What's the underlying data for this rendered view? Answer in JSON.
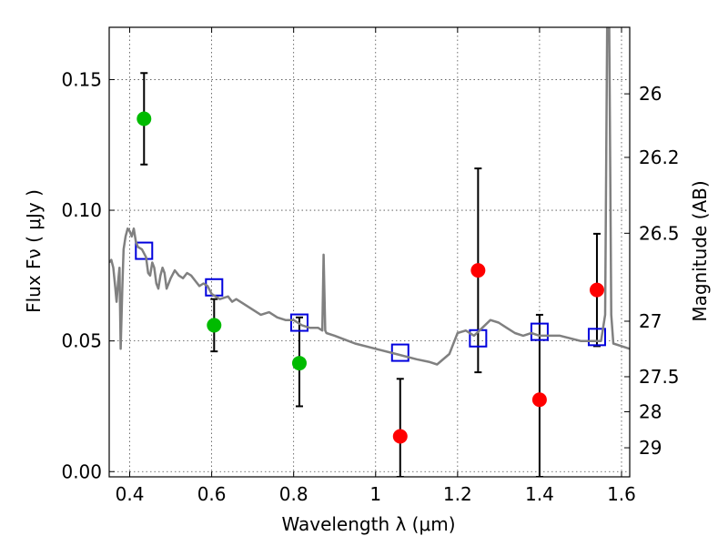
{
  "chart_data": {
    "type": "scatter",
    "xlabel": "Wavelength  λ (μm)",
    "ylabel": "Flux  Fν  ( μJy )",
    "ylabel_right": "Magnitude (AB)",
    "xlim": [
      0.35,
      1.62
    ],
    "ylim": [
      -0.002,
      0.17
    ],
    "grid": true,
    "x_ticks": [
      0.4,
      0.6,
      0.8,
      1.0,
      1.2,
      1.4,
      1.6
    ],
    "x_tick_labels": [
      "0.4",
      "0.6",
      "0.8",
      "1",
      "1.2",
      "1.4",
      "1.6"
    ],
    "y_ticks": [
      0.0,
      0.05,
      0.1,
      0.15
    ],
    "y_tick_labels": [
      "0.00",
      "0.05",
      "0.10",
      "0.15"
    ],
    "y_right_ticks": [
      26,
      26.2,
      26.5,
      27,
      27.5,
      28,
      29
    ],
    "y_right_tick_labels": [
      "26",
      "26.2",
      "26.5",
      "27",
      "27.5",
      "28",
      "29"
    ],
    "series": [
      {
        "color": "#00bb00",
        "marker": "circle",
        "x": [
          0.435,
          0.606,
          0.814
        ],
        "y": [
          0.135,
          0.056,
          0.0415
        ],
        "yerr_low": [
          0.1175,
          0.046,
          0.025
        ],
        "yerr_high": [
          0.1525,
          0.066,
          0.059
        ]
      },
      {
        "color": "#ff0000",
        "marker": "circle",
        "x": [
          1.06,
          1.25,
          1.4,
          1.54
        ],
        "y": [
          0.0135,
          0.077,
          0.0275,
          0.0695
        ],
        "yerr_low": [
          -0.002,
          0.038,
          -0.002,
          0.048
        ],
        "yerr_high": [
          0.0355,
          0.116,
          0.06,
          0.091
        ]
      },
      {
        "color": "#0000dd",
        "marker": "open-square",
        "x": [
          0.435,
          0.606,
          0.814,
          1.06,
          1.25,
          1.4,
          1.54
        ],
        "y": [
          0.0845,
          0.0705,
          0.057,
          0.0455,
          0.051,
          0.0535,
          0.0515
        ]
      },
      {
        "color": "#808080",
        "marker": "line",
        "x": [
          0.35,
          0.355,
          0.36,
          0.365,
          0.368,
          0.372,
          0.375,
          0.378,
          0.382,
          0.385,
          0.39,
          0.395,
          0.4,
          0.405,
          0.41,
          0.415,
          0.42,
          0.43,
          0.44,
          0.445,
          0.45,
          0.455,
          0.46,
          0.465,
          0.47,
          0.475,
          0.48,
          0.485,
          0.49,
          0.5,
          0.51,
          0.52,
          0.53,
          0.54,
          0.55,
          0.56,
          0.57,
          0.58,
          0.59,
          0.6,
          0.62,
          0.64,
          0.65,
          0.66,
          0.68,
          0.7,
          0.72,
          0.74,
          0.76,
          0.78,
          0.8,
          0.82,
          0.84,
          0.86,
          0.87,
          0.873,
          0.877,
          0.88,
          0.9,
          0.95,
          1.0,
          1.05,
          1.1,
          1.13,
          1.15,
          1.18,
          1.2,
          1.22,
          1.24,
          1.26,
          1.28,
          1.3,
          1.32,
          1.34,
          1.36,
          1.38,
          1.4,
          1.45,
          1.5,
          1.55,
          1.56,
          1.565,
          1.57,
          1.575,
          1.58,
          1.62
        ],
        "y": [
          0.08,
          0.081,
          0.078,
          0.07,
          0.065,
          0.073,
          0.078,
          0.047,
          0.07,
          0.085,
          0.09,
          0.093,
          0.092,
          0.09,
          0.093,
          0.088,
          0.086,
          0.085,
          0.082,
          0.076,
          0.075,
          0.08,
          0.078,
          0.072,
          0.07,
          0.075,
          0.078,
          0.076,
          0.07,
          0.074,
          0.077,
          0.075,
          0.074,
          0.076,
          0.075,
          0.073,
          0.071,
          0.072,
          0.071,
          0.068,
          0.066,
          0.067,
          0.065,
          0.066,
          0.064,
          0.062,
          0.06,
          0.061,
          0.059,
          0.058,
          0.058,
          0.056,
          0.055,
          0.055,
          0.054,
          0.083,
          0.054,
          0.053,
          0.052,
          0.049,
          0.047,
          0.045,
          0.043,
          0.042,
          0.041,
          0.045,
          0.053,
          0.054,
          0.052,
          0.055,
          0.058,
          0.057,
          0.055,
          0.053,
          0.052,
          0.053,
          0.052,
          0.052,
          0.05,
          0.05,
          0.06,
          0.17,
          0.17,
          0.06,
          0.049,
          0.047
        ]
      }
    ]
  }
}
